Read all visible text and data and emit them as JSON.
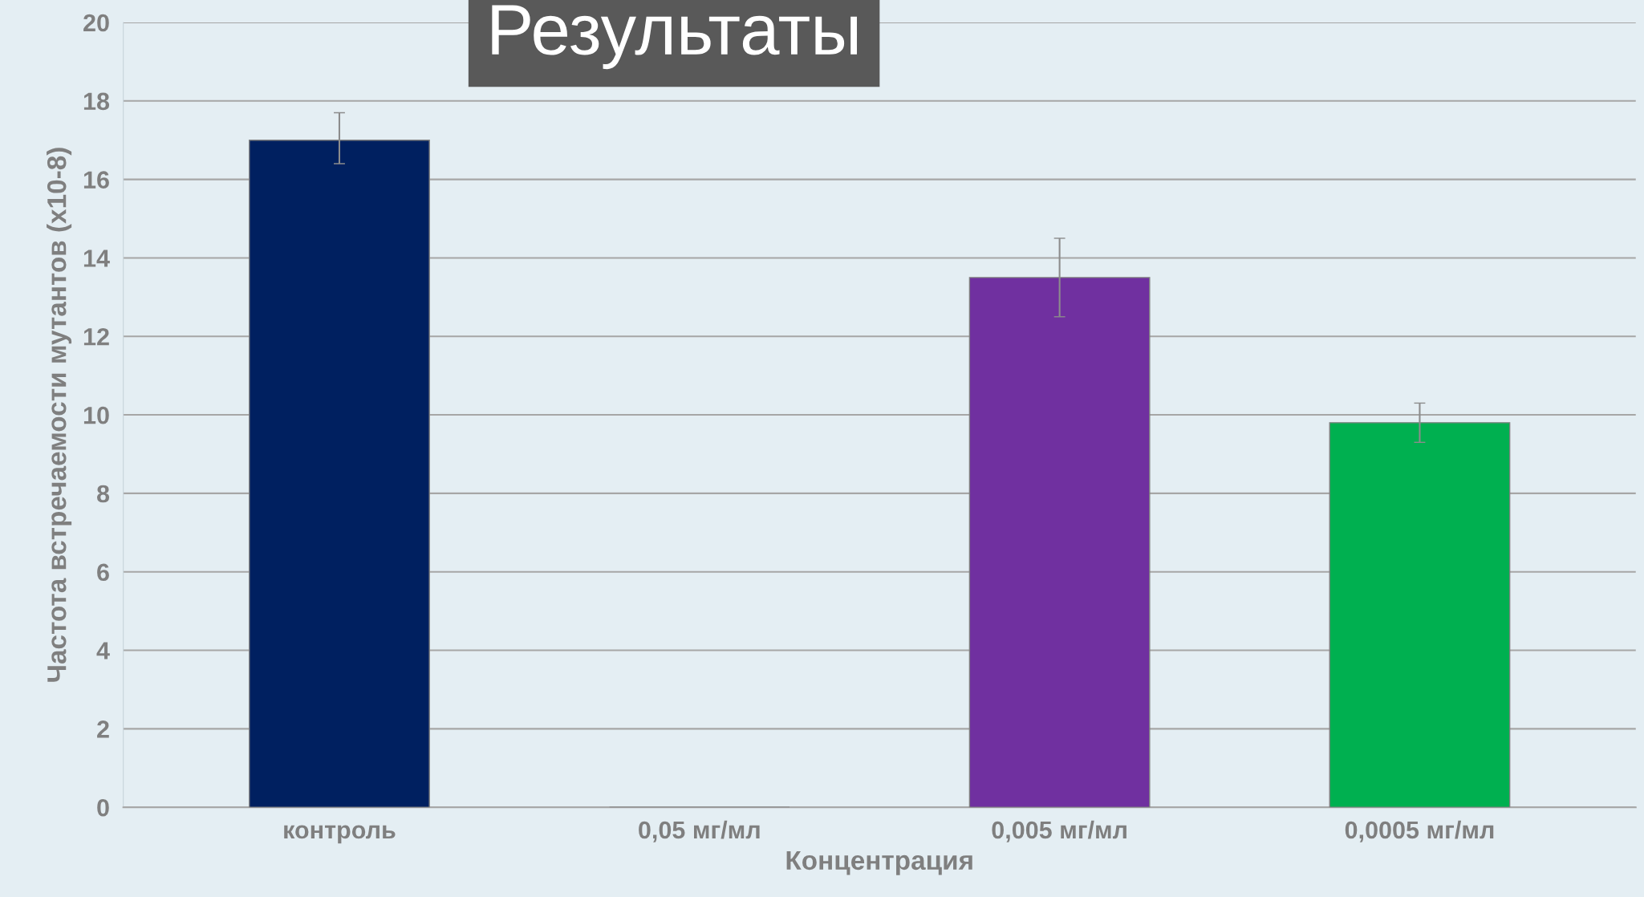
{
  "chart_data": {
    "type": "bar",
    "title": "Результаты",
    "xlabel": "Концентрация",
    "ylabel": "Частота встречаемости мутантов (x10-8)",
    "categories": [
      "контроль",
      "0,05 мг/мл",
      "0,005 мг/мл",
      "0,0005 мг/мл"
    ],
    "values": [
      17.0,
      0,
      13.5,
      9.8
    ],
    "colors": [
      "#002060",
      "#7f7f7f",
      "#7030a0",
      "#00b050"
    ],
    "errors": [
      [
        16.4,
        17.7
      ],
      null,
      [
        12.5,
        14.5
      ],
      [
        9.3,
        10.3
      ]
    ],
    "ylim": [
      0,
      20
    ],
    "yticks": [
      0,
      2,
      4,
      6,
      8,
      10,
      12,
      14,
      16,
      18,
      20
    ],
    "grid": "y"
  }
}
